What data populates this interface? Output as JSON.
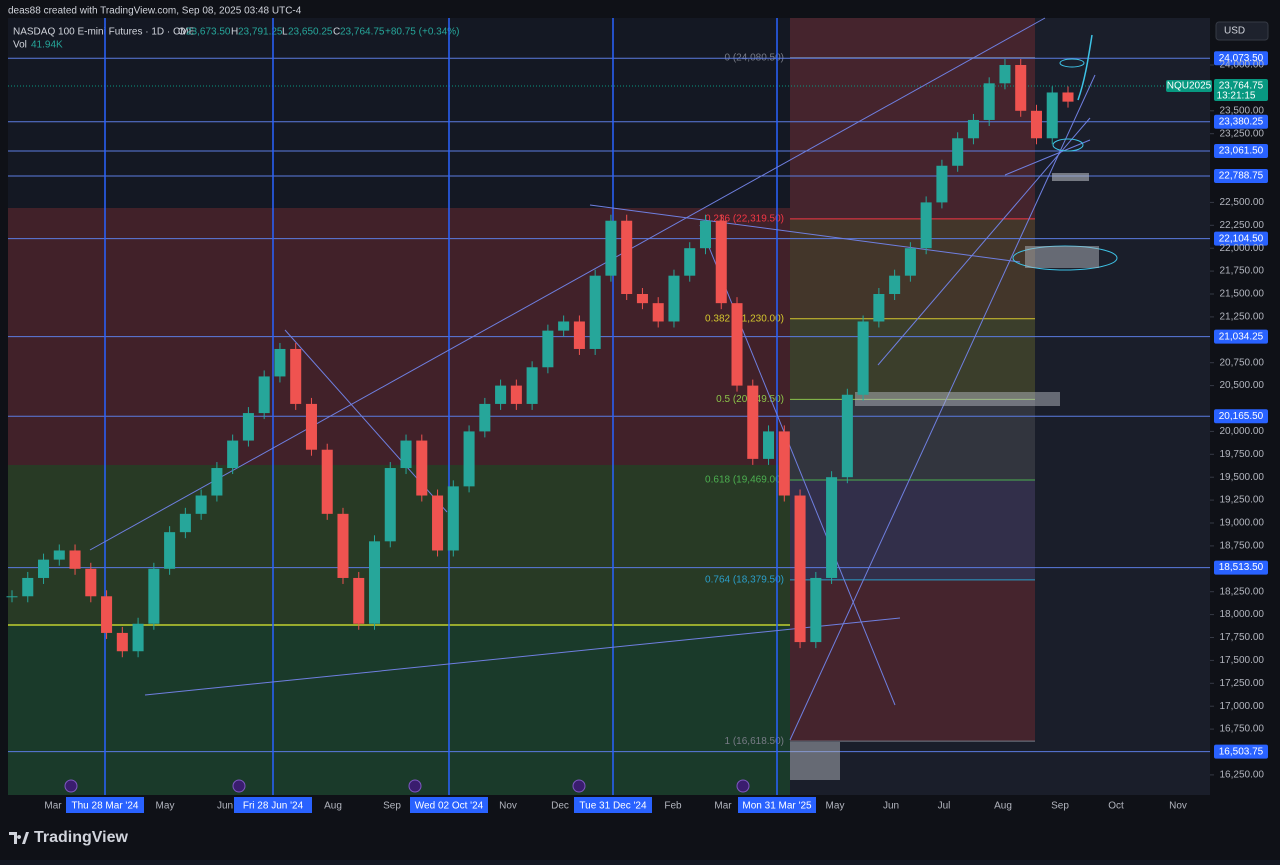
{
  "header": {
    "credit": "deas88 created with TradingView.com, Sep 08, 2025 03:48 UTC-4",
    "symbol": "NASDAQ 100 E-mini Futures · 1D · CME",
    "o_label": "O",
    "open": "23,673.50",
    "h_label": "H",
    "high": "23,791.25",
    "l_label": "L",
    "low": "23,650.25",
    "c_label": "C",
    "close": "23,764.75",
    "change": "+80.75 (+0.34%)",
    "vol_label": "Vol",
    "volume": "41.94K",
    "currency": "USD"
  },
  "price_axis": {
    "ticks": [
      {
        "value": 24000,
        "label": "24,000.00"
      },
      {
        "value": 23500,
        "label": "23,500.00"
      },
      {
        "value": 23250,
        "label": "23,250.00"
      },
      {
        "value": 22500,
        "label": "22,500.00"
      },
      {
        "value": 22250,
        "label": "22,250.00"
      },
      {
        "value": 22000,
        "label": "22,000.00"
      },
      {
        "value": 21750,
        "label": "21,750.00"
      },
      {
        "value": 21500,
        "label": "21,500.00"
      },
      {
        "value": 21250,
        "label": "21,250.00"
      },
      {
        "value": 20750,
        "label": "20,750.00"
      },
      {
        "value": 20500,
        "label": "20,500.00"
      },
      {
        "value": 20000,
        "label": "20,000.00"
      },
      {
        "value": 19750,
        "label": "19,750.00"
      },
      {
        "value": 19500,
        "label": "19,500.00"
      },
      {
        "value": 19250,
        "label": "19,250.00"
      },
      {
        "value": 19000,
        "label": "19,000.00"
      },
      {
        "value": 18750,
        "label": "18,750.00"
      },
      {
        "value": 18250,
        "label": "18,250.00"
      },
      {
        "value": 18000,
        "label": "18,000.00"
      },
      {
        "value": 17750,
        "label": "17,750.00"
      },
      {
        "value": 17500,
        "label": "17,500.00"
      },
      {
        "value": 17250,
        "label": "17,250.00"
      },
      {
        "value": 17000,
        "label": "17,000.00"
      },
      {
        "value": 16750,
        "label": "16,750.00"
      },
      {
        "value": 16250,
        "label": "16,250.00"
      }
    ]
  },
  "levels": [
    {
      "value": 24073.5,
      "label": "24,073.50"
    },
    {
      "value": 23380.25,
      "label": "23,380.25"
    },
    {
      "value": 23061.5,
      "label": "23,061.50"
    },
    {
      "value": 22788.75,
      "label": "22,788.75"
    },
    {
      "value": 22104.5,
      "label": "22,104.50"
    },
    {
      "value": 21034.25,
      "label": "21,034.25"
    },
    {
      "value": 20165.5,
      "label": "20,165.50"
    },
    {
      "value": 18513.5,
      "label": "18,513.50"
    },
    {
      "value": 16503.75,
      "label": "16,503.75"
    }
  ],
  "last_price": {
    "symbol": "NQU2025",
    "price": "23,764.75",
    "countdown": "13:21:15"
  },
  "fib": [
    {
      "value": 24080.5,
      "label": "0 (24,080.50)",
      "color": "#787b86"
    },
    {
      "value": 22319.5,
      "label": "0.236 (22,319.50)",
      "color": "#f23645"
    },
    {
      "value": 21230,
      "label": "0.382 (21,230.00)",
      "color": "#d4c72e"
    },
    {
      "value": 20349.5,
      "label": "0.5 (20,349.50)",
      "color": "#8bc34a"
    },
    {
      "value": 19469,
      "label": "0.618 (19,469.00)",
      "color": "#4caf50"
    },
    {
      "value": 18379.5,
      "label": "0.764 (18,379.50)",
      "color": "#2b9ec9"
    },
    {
      "value": 16618.5,
      "label": "1 (16,618.50)",
      "color": "#787b86"
    }
  ],
  "time_axis": [
    "Mar",
    "Thu 28 Mar '24",
    "May",
    "Jun",
    "Fri 28 Jun '24",
    "Aug",
    "Sep",
    "Wed 02 Oct '24",
    "Nov",
    "Dec",
    "Tue 31 Dec '24",
    "Feb",
    "Mar",
    "Mon 31 Mar '25",
    "May",
    "Jun",
    "Jul",
    "Aug",
    "Sep",
    "Oct",
    "Nov"
  ],
  "price_series": {
    "closes": [
      18200,
      18400,
      18600,
      18700,
      18500,
      18200,
      17800,
      17600,
      17900,
      18500,
      18900,
      19100,
      19300,
      19600,
      19900,
      20200,
      20600,
      20900,
      20300,
      19800,
      19100,
      18400,
      17900,
      18800,
      19600,
      19900,
      19300,
      18700,
      19400,
      20000,
      20300,
      20500,
      20300,
      20700,
      21100,
      21200,
      20900,
      21700,
      22300,
      21500,
      21400,
      21200,
      21700,
      22000,
      22300,
      21400,
      20500,
      19700,
      20000,
      19300,
      17700,
      18400,
      19500,
      20400,
      21200,
      21500,
      21700,
      22000,
      22500,
      22900,
      23200,
      23400,
      23800,
      24000,
      23500,
      23200,
      23700,
      23600
    ]
  },
  "footer": {
    "brand": "TradingView"
  }
}
